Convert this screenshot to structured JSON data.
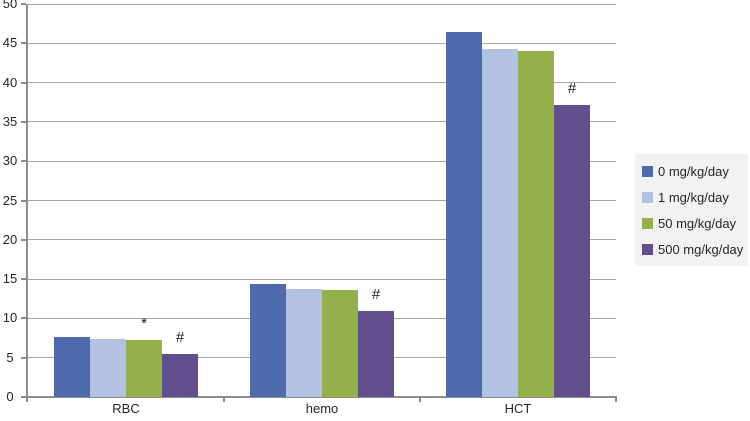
{
  "chart_data": {
    "type": "bar",
    "title": "",
    "xlabel": "",
    "ylabel": "",
    "categories": [
      "RBC",
      "hemo",
      "HCT"
    ],
    "series": [
      {
        "name": "0 mg/kg/day",
        "color": "#4f6aad",
        "values": [
          7.6,
          14.4,
          46.4
        ]
      },
      {
        "name": "1 mg/kg/day",
        "color": "#b3c2e0",
        "values": [
          7.4,
          13.7,
          44.3
        ]
      },
      {
        "name": "50 mg/kg/day",
        "color": "#95b04a",
        "values": [
          7.2,
          13.6,
          44.0
        ]
      },
      {
        "name": "500 mg/kg/day",
        "color": "#614e8d",
        "values": [
          5.5,
          10.9,
          37.1
        ]
      }
    ],
    "annotations": [
      {
        "category_index": 0,
        "series_index": 2,
        "symbol": "*"
      },
      {
        "category_index": 0,
        "series_index": 3,
        "symbol": "#"
      },
      {
        "category_index": 1,
        "series_index": 3,
        "symbol": "#"
      },
      {
        "category_index": 2,
        "series_index": 3,
        "symbol": "#"
      }
    ],
    "ylim": [
      0,
      50
    ],
    "ytick_step": 5,
    "yticks": [
      "0",
      "5",
      "10",
      "15",
      "20",
      "25",
      "30",
      "35",
      "40",
      "45",
      "50"
    ],
    "grid": true,
    "legend_position": "right",
    "gridline_color": "#a6a6a6",
    "axis_color": "#8c8c8c",
    "text_color": "#262626",
    "legend_background": "#f2f2f2"
  }
}
